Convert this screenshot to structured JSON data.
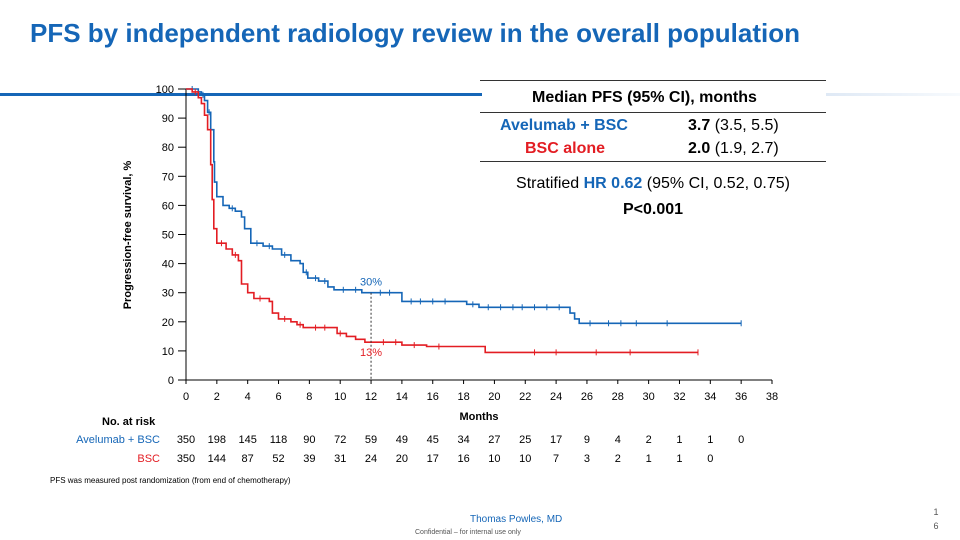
{
  "slide": {
    "title": "PFS by independent radiology review in the overall population",
    "footnote": "PFS was measured post randomization  (from end of chemotherapy)",
    "presenter": "Thomas Powles, MD",
    "confidential": "Confidential – for internal use only",
    "page_number_1": "1",
    "page_number_2": "6"
  },
  "median_box": {
    "header": "Median PFS (95% CI), months",
    "rows": [
      {
        "label": "Avelumab + BSC",
        "median": "3.7",
        "ci": "(3.5, 5.5)",
        "color": "#1566B7"
      },
      {
        "label": "BSC alone",
        "median": "2.0",
        "ci": "(1.9, 2.7)",
        "color": "#E31D23"
      }
    ],
    "hr_prefix": "Stratified ",
    "hr_label": "HR 0.62",
    "hr_suffix": " (95% CI, 0.52, 0.75)",
    "p_value": "P<0.001"
  },
  "risk_table": {
    "header": "No. at risk",
    "rows": [
      {
        "label": "Avelumab + BSC",
        "color": "#1566B7",
        "values": [
          "350",
          "198",
          "145",
          "118",
          "90",
          "72",
          "59",
          "49",
          "45",
          "34",
          "27",
          "25",
          "17",
          "9",
          "4",
          "2",
          "1",
          "1",
          "0"
        ]
      },
      {
        "label": "BSC",
        "color": "#E31D23",
        "values": [
          "350",
          "144",
          "87",
          "52",
          "39",
          "31",
          "24",
          "20",
          "17",
          "16",
          "10",
          "10",
          "7",
          "3",
          "2",
          "1",
          "1",
          "0"
        ]
      }
    ]
  },
  "chart_data": {
    "type": "line",
    "title": "",
    "xlabel": "Months",
    "ylabel": "Progression-free survival, %",
    "xlim": [
      0,
      38
    ],
    "ylim": [
      0,
      100
    ],
    "xticks": [
      0,
      2,
      4,
      6,
      8,
      10,
      12,
      14,
      16,
      18,
      20,
      22,
      24,
      26,
      28,
      30,
      32,
      34,
      36,
      38
    ],
    "yticks": [
      0,
      10,
      20,
      30,
      40,
      50,
      60,
      70,
      80,
      90,
      100
    ],
    "grid": false,
    "annotations": [
      {
        "text": "30%",
        "x": 12,
        "y": 30,
        "color": "#1566B7"
      },
      {
        "text": "13%",
        "x": 12,
        "y": 13,
        "color": "#E31D23"
      }
    ],
    "series": [
      {
        "name": "Avelumab + BSC",
        "color": "#1566B7",
        "points": [
          [
            0,
            100
          ],
          [
            0.6,
            100
          ],
          [
            0.8,
            99
          ],
          [
            1.0,
            98
          ],
          [
            1.2,
            96
          ],
          [
            1.4,
            92
          ],
          [
            1.6,
            86
          ],
          [
            1.8,
            75
          ],
          [
            1.85,
            68
          ],
          [
            2.0,
            63
          ],
          [
            2.4,
            60
          ],
          [
            2.8,
            59
          ],
          [
            3.2,
            58
          ],
          [
            3.6,
            56
          ],
          [
            3.8,
            52
          ],
          [
            4.2,
            47
          ],
          [
            5.0,
            46
          ],
          [
            5.6,
            45
          ],
          [
            6.2,
            43
          ],
          [
            6.8,
            41
          ],
          [
            7.4,
            40
          ],
          [
            7.6,
            37
          ],
          [
            7.9,
            35
          ],
          [
            8.6,
            34
          ],
          [
            9.2,
            32
          ],
          [
            9.6,
            31
          ],
          [
            10.8,
            31
          ],
          [
            11.4,
            30
          ],
          [
            12.0,
            30
          ],
          [
            13.8,
            30
          ],
          [
            14.0,
            27
          ],
          [
            17.6,
            27
          ],
          [
            18.2,
            26
          ],
          [
            19.0,
            25
          ],
          [
            24.6,
            25
          ],
          [
            24.9,
            23
          ],
          [
            25.2,
            21
          ],
          [
            25.5,
            19.5
          ],
          [
            36.0,
            19.5
          ]
        ],
        "censor_x": [
          0.4,
          1.1,
          1.5,
          3.0,
          4.6,
          5.4,
          6.4,
          7.8,
          8.4,
          9.0,
          10.2,
          11.0,
          12.6,
          13.2,
          14.6,
          15.2,
          16.0,
          16.8,
          18.6,
          19.6,
          20.4,
          21.2,
          21.8,
          22.6,
          23.4,
          24.2,
          26.2,
          27.4,
          28.2,
          29.2,
          31.2,
          36.0
        ]
      },
      {
        "name": "BSC",
        "color": "#E31D23",
        "points": [
          [
            0,
            100
          ],
          [
            0.4,
            99
          ],
          [
            0.8,
            97
          ],
          [
            1.0,
            95
          ],
          [
            1.2,
            91
          ],
          [
            1.4,
            86
          ],
          [
            1.6,
            74
          ],
          [
            1.7,
            62
          ],
          [
            1.8,
            52
          ],
          [
            2.0,
            47
          ],
          [
            2.6,
            45
          ],
          [
            3.0,
            43
          ],
          [
            3.4,
            41
          ],
          [
            3.6,
            33
          ],
          [
            4.0,
            30
          ],
          [
            4.4,
            28
          ],
          [
            5.4,
            27
          ],
          [
            5.6,
            23
          ],
          [
            6.0,
            21
          ],
          [
            6.8,
            20
          ],
          [
            7.2,
            19
          ],
          [
            7.6,
            18
          ],
          [
            9.6,
            18
          ],
          [
            9.8,
            16
          ],
          [
            10.4,
            15
          ],
          [
            11.0,
            14
          ],
          [
            11.6,
            13
          ],
          [
            12.0,
            13
          ],
          [
            13.8,
            13
          ],
          [
            14.0,
            12
          ],
          [
            15.4,
            12
          ],
          [
            15.6,
            11.5
          ],
          [
            19.2,
            11.5
          ],
          [
            19.4,
            9.5
          ],
          [
            33.2,
            9.5
          ]
        ],
        "censor_x": [
          0.6,
          2.3,
          3.2,
          4.8,
          6.4,
          7.4,
          8.4,
          9.0,
          10.0,
          12.8,
          13.6,
          14.8,
          16.4,
          22.6,
          24.0,
          26.6,
          28.8,
          33.2
        ]
      }
    ]
  }
}
